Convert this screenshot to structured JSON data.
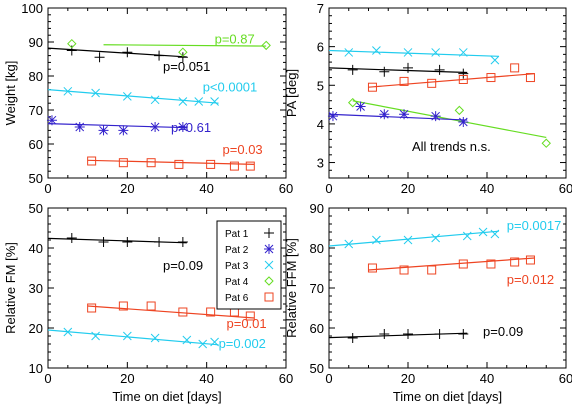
{
  "chart_data": [
    {
      "type": "scatter",
      "ylabel": "Weight [kg]",
      "xlabel": "",
      "xlim": [
        0,
        60
      ],
      "ylim": [
        50,
        100
      ],
      "xticks": [
        0,
        20,
        40,
        60
      ],
      "yticks": [
        50,
        60,
        70,
        80,
        90,
        100
      ],
      "series": [
        {
          "name": "Pat 1",
          "marker": "plus",
          "color": "#000000",
          "points": [
            [
              6,
              87.5
            ],
            [
              13,
              85.5
            ],
            [
              20,
              87
            ],
            [
              28,
              86
            ],
            [
              34,
              85.5
            ]
          ],
          "trend": [
            [
              0,
              88.2
            ],
            [
              35,
              85.6
            ]
          ]
        },
        {
          "name": "Pat 4",
          "marker": "diamond",
          "color": "#66dd22",
          "points": [
            [
              6,
              89.5
            ],
            [
              34,
              87
            ],
            [
              55,
              89
            ]
          ],
          "trend": [
            [
              14,
              89.2
            ],
            [
              55,
              88.8
            ]
          ]
        },
        {
          "name": "Pat 3",
          "marker": "x",
          "color": "#22ccee",
          "points": [
            [
              5,
              75.5
            ],
            [
              12,
              75
            ],
            [
              20,
              74
            ],
            [
              27,
              73
            ],
            [
              34,
              72.5
            ],
            [
              38,
              72.5
            ],
            [
              42,
              72.5
            ]
          ],
          "trend": [
            [
              0,
              76
            ],
            [
              43,
              72
            ]
          ]
        },
        {
          "name": "Pat 2",
          "marker": "asterisk",
          "color": "#3322cc",
          "points": [
            [
              1,
              67
            ],
            [
              8,
              65
            ],
            [
              14,
              64
            ],
            [
              19,
              64
            ],
            [
              27,
              65
            ],
            [
              34,
              65
            ]
          ],
          "trend": [
            [
              0,
              66
            ],
            [
              35,
              64.8
            ]
          ]
        },
        {
          "name": "Pat 6",
          "marker": "square",
          "color": "#ee4422",
          "points": [
            [
              11,
              55
            ],
            [
              19,
              54.5
            ],
            [
              26,
              54.5
            ],
            [
              33,
              54
            ],
            [
              41,
              54
            ],
            [
              47,
              53.5
            ],
            [
              51,
              53.5
            ]
          ],
          "trend": [
            [
              10,
              55.2
            ],
            [
              52,
              54
            ]
          ]
        }
      ],
      "annotations": [
        {
          "text": "p=0.87",
          "x": 42,
          "y": 89.5,
          "color": "#66dd22"
        },
        {
          "text": "p=0.051",
          "x": 29,
          "y": 81.5,
          "color": "#000000"
        },
        {
          "text": "p<0.0001",
          "x": 39,
          "y": 75.5,
          "color": "#22ccee"
        },
        {
          "text": "p=0.61",
          "x": 31,
          "y": 63.5,
          "color": "#3322cc"
        },
        {
          "text": "p=0.03",
          "x": 44,
          "y": 57,
          "color": "#ee4422"
        }
      ]
    },
    {
      "type": "scatter",
      "ylabel": "PA [deg]",
      "xlabel": "",
      "xlim": [
        0,
        60
      ],
      "ylim": [
        2.6,
        7.0
      ],
      "xticks": [
        0,
        20,
        40,
        60
      ],
      "yticks": [
        3,
        4,
        5,
        6,
        7
      ],
      "series": [
        {
          "name": "Pat 3",
          "marker": "x",
          "color": "#22ccee",
          "points": [
            [
              5,
              5.85
            ],
            [
              12,
              5.9
            ],
            [
              20,
              5.85
            ],
            [
              27,
              5.85
            ],
            [
              34,
              5.85
            ],
            [
              42,
              5.65
            ]
          ],
          "trend": [
            [
              0,
              5.9
            ],
            [
              43,
              5.75
            ]
          ]
        },
        {
          "name": "Pat 1",
          "marker": "plus",
          "color": "#000000",
          "points": [
            [
              6,
              5.4
            ],
            [
              14,
              5.35
            ],
            [
              20,
              5.45
            ],
            [
              28,
              5.4
            ],
            [
              34,
              5.3
            ]
          ],
          "trend": [
            [
              0,
              5.45
            ],
            [
              35,
              5.33
            ]
          ]
        },
        {
          "name": "Pat 6",
          "marker": "square",
          "color": "#ee4422",
          "points": [
            [
              11,
              4.95
            ],
            [
              19,
              5.1
            ],
            [
              26,
              5.05
            ],
            [
              34,
              5.15
            ],
            [
              41,
              5.2
            ],
            [
              47,
              5.45
            ],
            [
              51,
              5.2
            ]
          ],
          "trend": [
            [
              10,
              4.95
            ],
            [
              52,
              5.3
            ]
          ]
        },
        {
          "name": "Pat 4",
          "marker": "diamond",
          "color": "#66dd22",
          "points": [
            [
              6,
              4.55
            ],
            [
              33,
              4.35
            ],
            [
              55,
              3.5
            ]
          ],
          "trend": [
            [
              6,
              4.6
            ],
            [
              55,
              3.65
            ]
          ]
        },
        {
          "name": "Pat 2",
          "marker": "asterisk",
          "color": "#3322cc",
          "points": [
            [
              1,
              4.2
            ],
            [
              8,
              4.45
            ],
            [
              14,
              4.25
            ],
            [
              19,
              4.25
            ],
            [
              27,
              4.2
            ],
            [
              34,
              4.05
            ]
          ],
          "trend": [
            [
              0,
              4.25
            ],
            [
              35,
              4.1
            ]
          ]
        }
      ],
      "annotations": [
        {
          "text": "All trends n.s.",
          "x": 21,
          "y": 3.3,
          "color": "#000000"
        }
      ]
    },
    {
      "type": "scatter",
      "ylabel": "Relative FM [%]",
      "xlabel": "Time on diet [days]",
      "xlim": [
        0,
        60
      ],
      "ylim": [
        10,
        50
      ],
      "xticks": [
        0,
        20,
        40,
        60
      ],
      "yticks": [
        10,
        20,
        30,
        40,
        50
      ],
      "series": [
        {
          "name": "Pat 1",
          "marker": "plus",
          "color": "#000000",
          "points": [
            [
              6,
              42.5
            ],
            [
              14,
              41.5
            ],
            [
              20,
              41.5
            ],
            [
              28,
              41.5
            ],
            [
              34,
              41.5
            ]
          ],
          "trend": [
            [
              0,
              42.4
            ],
            [
              35,
              41.3
            ]
          ]
        },
        {
          "name": "Pat 6",
          "marker": "square",
          "color": "#ee4422",
          "points": [
            [
              11,
              25
            ],
            [
              19,
              25.5
            ],
            [
              26,
              25.5
            ],
            [
              34,
              24
            ],
            [
              41,
              24
            ],
            [
              47,
              24
            ],
            [
              51,
              23
            ]
          ],
          "trend": [
            [
              10,
              25.5
            ],
            [
              52,
              22.5
            ]
          ]
        },
        {
          "name": "Pat 3",
          "marker": "x",
          "color": "#22ccee",
          "points": [
            [
              5,
              19
            ],
            [
              12,
              18
            ],
            [
              20,
              18
            ],
            [
              27,
              17.5
            ],
            [
              35,
              17
            ],
            [
              39,
              16
            ],
            [
              42,
              16.5
            ]
          ],
          "trend": [
            [
              0,
              19.5
            ],
            [
              43,
              15.8
            ]
          ]
        }
      ],
      "annotations": [
        {
          "text": "p=0.09",
          "x": 29,
          "y": 34.5,
          "color": "#000000"
        },
        {
          "text": "p=0.01",
          "x": 45,
          "y": 20,
          "color": "#ee4422"
        },
        {
          "text": "p=0.002",
          "x": 43,
          "y": 15,
          "color": "#22ccee"
        }
      ]
    },
    {
      "type": "scatter",
      "ylabel": "Relative FFM [%]",
      "xlabel": "Time on diet [days]",
      "xlim": [
        0,
        60
      ],
      "ylim": [
        50,
        90
      ],
      "xticks": [
        0,
        20,
        40,
        60
      ],
      "yticks": [
        50,
        60,
        70,
        80,
        90
      ],
      "series": [
        {
          "name": "Pat 3",
          "marker": "x",
          "color": "#22ccee",
          "points": [
            [
              5,
              81
            ],
            [
              12,
              82
            ],
            [
              20,
              82
            ],
            [
              27,
              82.5
            ],
            [
              35,
              83
            ],
            [
              39,
              84
            ],
            [
              42,
              83.5
            ]
          ],
          "trend": [
            [
              0,
              80.5
            ],
            [
              43,
              84.2
            ]
          ]
        },
        {
          "name": "Pat 6",
          "marker": "square",
          "color": "#ee4422",
          "points": [
            [
              11,
              75
            ],
            [
              19,
              74.5
            ],
            [
              26,
              74.5
            ],
            [
              34,
              76
            ],
            [
              41,
              76
            ],
            [
              47,
              76.5
            ],
            [
              51,
              77
            ]
          ],
          "trend": [
            [
              10,
              74.5
            ],
            [
              52,
              77.5
            ]
          ]
        },
        {
          "name": "Pat 1",
          "marker": "plus",
          "color": "#000000",
          "points": [
            [
              6,
              57.5
            ],
            [
              14,
              58.5
            ],
            [
              20,
              58.5
            ],
            [
              28,
              58.5
            ],
            [
              34,
              58.5
            ]
          ],
          "trend": [
            [
              0,
              57.6
            ],
            [
              35,
              58.7
            ]
          ]
        }
      ],
      "annotations": [
        {
          "text": "p=0.0017",
          "x": 45,
          "y": 84.5,
          "color": "#22ccee"
        },
        {
          "text": "p=0.012",
          "x": 45,
          "y": 71,
          "color": "#ee4422"
        },
        {
          "text": "p=0.09",
          "x": 39,
          "y": 58,
          "color": "#000000"
        }
      ]
    }
  ],
  "legend": {
    "placement": "upper-right of third panel",
    "entries": [
      {
        "label": "Pat 1",
        "marker": "plus",
        "color": "#000000"
      },
      {
        "label": "Pat 2",
        "marker": "asterisk",
        "color": "#3322cc"
      },
      {
        "label": "Pat 3",
        "marker": "x",
        "color": "#22ccee"
      },
      {
        "label": "Pat 4",
        "marker": "diamond",
        "color": "#66dd22"
      },
      {
        "label": "Pat 6",
        "marker": "square",
        "color": "#ee4422"
      }
    ]
  }
}
